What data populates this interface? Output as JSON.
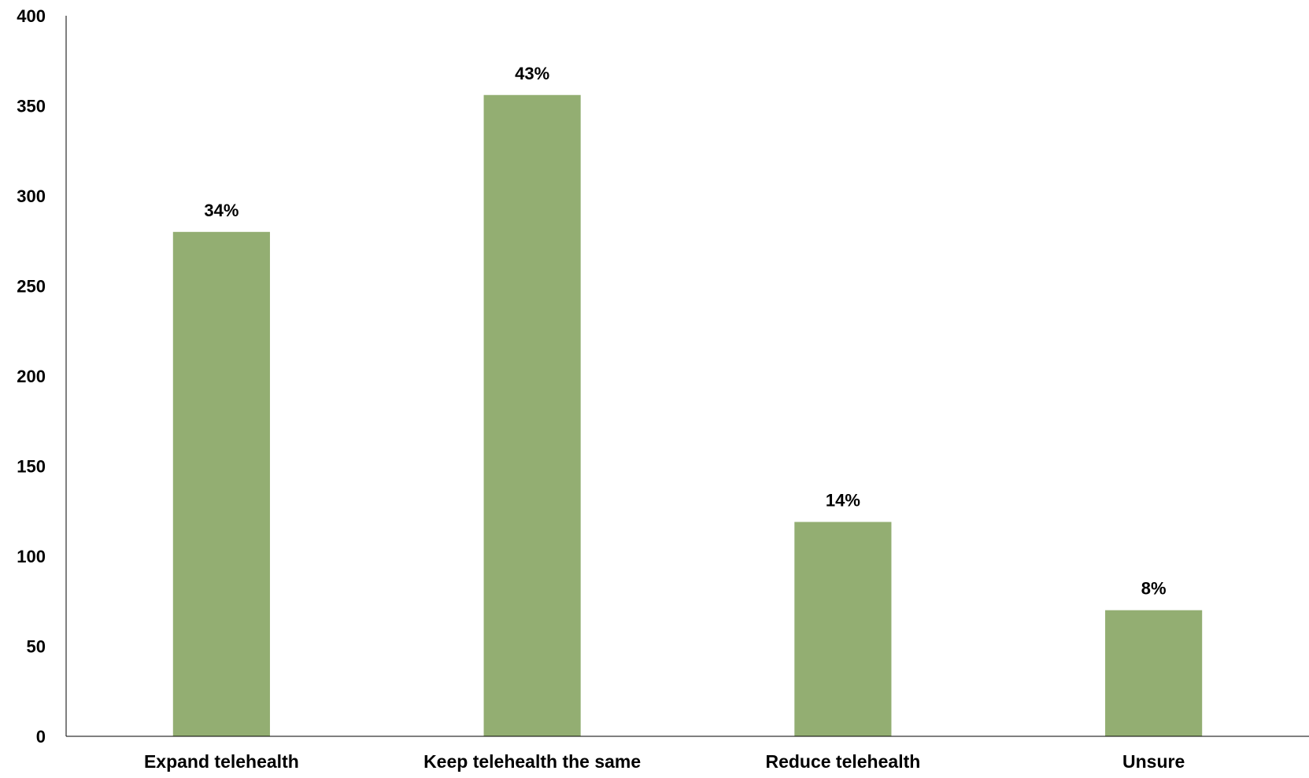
{
  "chart_data": {
    "type": "bar",
    "categories": [
      "Expand telehealth",
      "Keep telehealth the same",
      "Reduce telehealth",
      "Unsure"
    ],
    "values": [
      280,
      356,
      119,
      70
    ],
    "data_labels": [
      "34%",
      "43%",
      "14%",
      "8%"
    ],
    "ylim": [
      0,
      400
    ],
    "yticks": [
      0,
      50,
      100,
      150,
      200,
      250,
      300,
      350,
      400
    ],
    "title": "",
    "xlabel": "",
    "ylabel": "",
    "grid": false,
    "legend": "none",
    "bar_color": "#93ae72"
  }
}
